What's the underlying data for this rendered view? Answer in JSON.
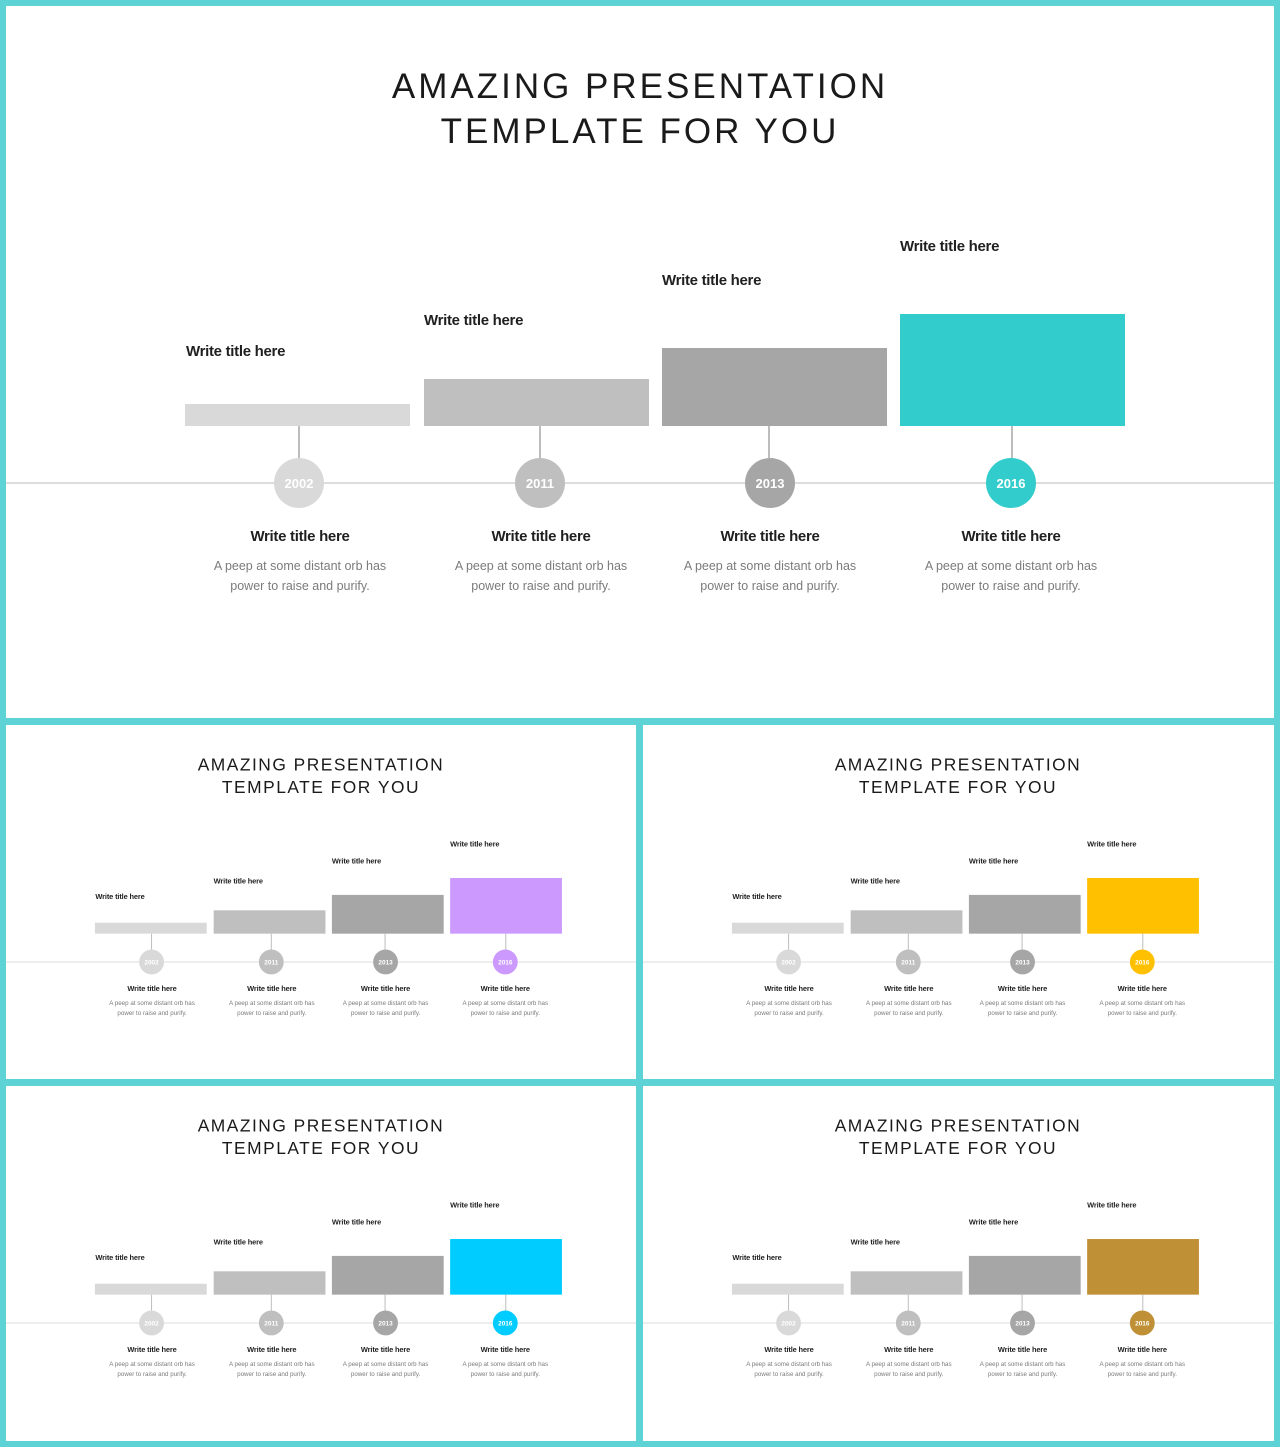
{
  "slides": [
    {
      "title_line1": "AMAZING PRESENTATION",
      "title_line2": "TEMPLATE FOR YOU",
      "accent": "#33CCCC",
      "columns": [
        {
          "year": "2002",
          "top_label": "Write title here",
          "sub_title": "Write title here",
          "desc_line1": "A peep at some distant orb has",
          "desc_line2": "power to raise and purify."
        },
        {
          "year": "2011",
          "top_label": "Write title here",
          "sub_title": "Write title here",
          "desc_line1": "A peep at some distant orb has",
          "desc_line2": "power to raise and purify."
        },
        {
          "year": "2013",
          "top_label": "Write title here",
          "sub_title": "Write title here",
          "desc_line1": "A peep at some distant orb has",
          "desc_line2": "power to raise and purify."
        },
        {
          "year": "2016",
          "top_label": "Write title here",
          "sub_title": "Write title here",
          "desc_line1": "A peep at some distant orb has",
          "desc_line2": "power to raise and purify."
        }
      ]
    },
    {
      "title_line1": "AMAZING PRESENTATION",
      "title_line2": "TEMPLATE FOR YOU",
      "accent": "#CC99FF",
      "columns": [
        {
          "year": "2002",
          "top_label": "Write title here",
          "sub_title": "Write title here",
          "desc_line1": "A peep at some distant orb has",
          "desc_line2": "power to raise and purify."
        },
        {
          "year": "2011",
          "top_label": "Write title here",
          "sub_title": "Write title here",
          "desc_line1": "A peep at some distant orb has",
          "desc_line2": "power to raise and purify."
        },
        {
          "year": "2013",
          "top_label": "Write title here",
          "sub_title": "Write title here",
          "desc_line1": "A peep at some distant orb has",
          "desc_line2": "power to raise and purify."
        },
        {
          "year": "2016",
          "top_label": "Write title here",
          "sub_title": "Write title here",
          "desc_line1": "A peep at some distant orb has",
          "desc_line2": "power to raise and purify."
        }
      ]
    },
    {
      "title_line1": "AMAZING PRESENTATION",
      "title_line2": "TEMPLATE FOR YOU",
      "accent": "#FFC000",
      "columns": [
        {
          "year": "2002",
          "top_label": "Write title here",
          "sub_title": "Write title here",
          "desc_line1": "A peep at some distant orb has",
          "desc_line2": "power to raise and purify."
        },
        {
          "year": "2011",
          "top_label": "Write title here",
          "sub_title": "Write title here",
          "desc_line1": "A peep at some distant orb has",
          "desc_line2": "power to raise and purify."
        },
        {
          "year": "2013",
          "top_label": "Write title here",
          "sub_title": "Write title here",
          "desc_line1": "A peep at some distant orb has",
          "desc_line2": "power to raise and purify."
        },
        {
          "year": "2016",
          "top_label": "Write title here",
          "sub_title": "Write title here",
          "desc_line1": "A peep at some distant orb has",
          "desc_line2": "power to raise and purify."
        }
      ]
    },
    {
      "title_line1": "AMAZING PRESENTATION",
      "title_line2": "TEMPLATE FOR YOU",
      "accent": "#00CCFF",
      "columns": [
        {
          "year": "2002",
          "top_label": "Write title here",
          "sub_title": "Write title here",
          "desc_line1": "A peep at some distant orb has",
          "desc_line2": "power to raise and purify."
        },
        {
          "year": "2011",
          "top_label": "Write title here",
          "sub_title": "Write title here",
          "desc_line1": "A peep at some distant orb has",
          "desc_line2": "power to raise and purify."
        },
        {
          "year": "2013",
          "top_label": "Write title here",
          "sub_title": "Write title here",
          "desc_line1": "A peep at some distant orb has",
          "desc_line2": "power to raise and purify."
        },
        {
          "year": "2016",
          "top_label": "Write title here",
          "sub_title": "Write title here",
          "desc_line1": "A peep at some distant orb has",
          "desc_line2": "power to raise and purify."
        }
      ]
    },
    {
      "title_line1": "AMAZING PRESENTATION",
      "title_line2": "TEMPLATE FOR YOU",
      "accent": "#BF9035",
      "columns": [
        {
          "year": "2002",
          "top_label": "Write title here",
          "sub_title": "Write title here",
          "desc_line1": "A peep at some distant orb has",
          "desc_line2": "power to raise and purify."
        },
        {
          "year": "2011",
          "top_label": "Write title here",
          "sub_title": "Write title here",
          "desc_line1": "A peep at some distant orb has",
          "desc_line2": "power to raise and purify."
        },
        {
          "year": "2013",
          "top_label": "Write title here",
          "sub_title": "Write title here",
          "desc_line1": "A peep at some distant orb has",
          "desc_line2": "power to raise and purify."
        },
        {
          "year": "2016",
          "top_label": "Write title here",
          "sub_title": "Write title here",
          "desc_line1": "A peep at some distant orb has",
          "desc_line2": "power to raise and purify."
        }
      ]
    }
  ]
}
